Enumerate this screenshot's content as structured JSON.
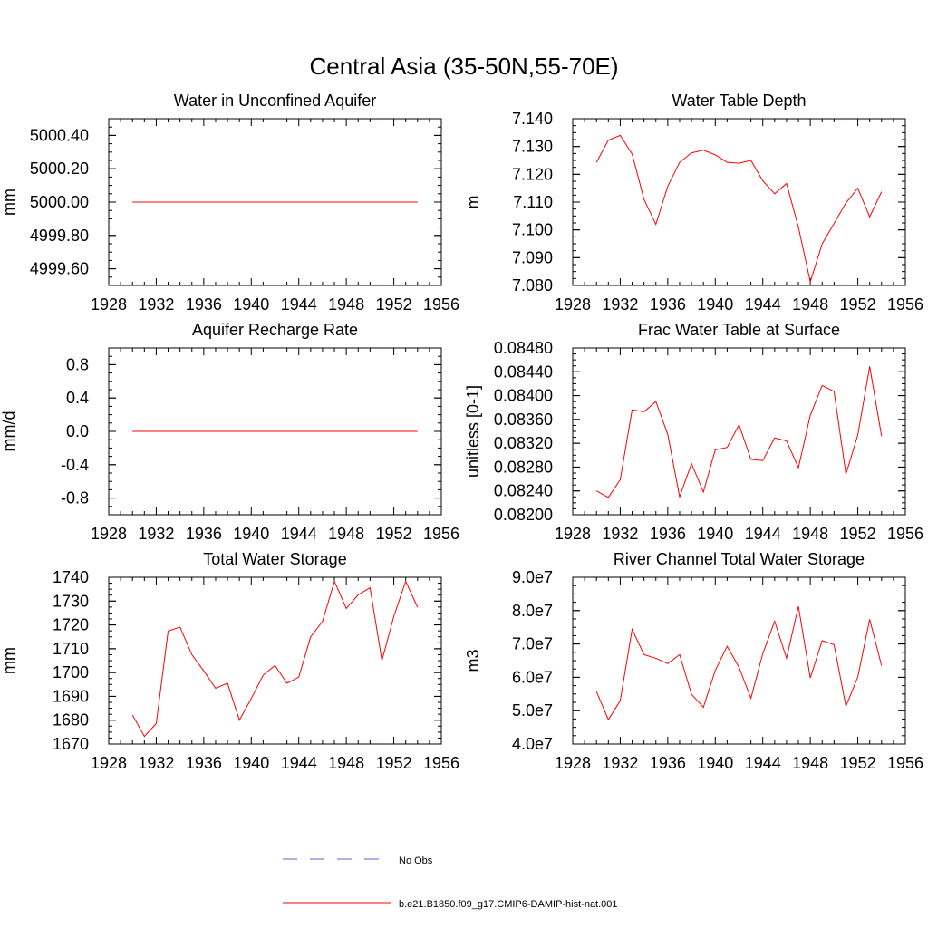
{
  "figure": {
    "title": "Central Asia (35-50N,55-70E)",
    "colors": {
      "model": "#ff0000",
      "obs": "#6060c0",
      "axis": "#000000"
    }
  },
  "legend": {
    "items": [
      {
        "label": "No Obs",
        "style": "dashed",
        "color": "#6060c0"
      },
      {
        "label": "b.e21.B1850.f09_g17.CMIP6-DAMIP-hist-nat.001",
        "style": "solid",
        "color": "#ff0000"
      }
    ]
  },
  "chart_data": [
    {
      "type": "line",
      "title": "Water in Unconfined Aquifer",
      "ylabel": "mm",
      "xlim": [
        1928,
        1956
      ],
      "xticks": [
        1928,
        1932,
        1936,
        1940,
        1944,
        1948,
        1952,
        1956
      ],
      "ylim": [
        4999.5,
        5000.5
      ],
      "yticks": [
        4999.6,
        4999.8,
        5000.0,
        5000.2,
        5000.4
      ],
      "ytick_labels": [
        "4999.60",
        "4999.80",
        "5000.00",
        "5000.20",
        "5000.40"
      ],
      "series": [
        {
          "x": [
            1930,
            1931,
            1932,
            1933,
            1934,
            1935,
            1936,
            1937,
            1938,
            1939,
            1940,
            1941,
            1942,
            1943,
            1944,
            1945,
            1946,
            1947,
            1948,
            1949,
            1950,
            1951,
            1952,
            1953,
            1954
          ],
          "y": [
            5000,
            5000,
            5000,
            5000,
            5000,
            5000,
            5000,
            5000,
            5000,
            5000,
            5000,
            5000,
            5000,
            5000,
            5000,
            5000,
            5000,
            5000,
            5000,
            5000,
            5000,
            5000,
            5000,
            5000,
            5000
          ]
        }
      ]
    },
    {
      "type": "line",
      "title": "Water Table Depth",
      "ylabel": "m",
      "xlim": [
        1928,
        1956
      ],
      "xticks": [
        1928,
        1932,
        1936,
        1940,
        1944,
        1948,
        1952,
        1956
      ],
      "ylim": [
        7.08,
        7.14
      ],
      "yticks": [
        7.08,
        7.09,
        7.1,
        7.11,
        7.12,
        7.13,
        7.14
      ],
      "ytick_labels": [
        "7.080",
        "7.090",
        "7.100",
        "7.110",
        "7.120",
        "7.130",
        "7.140"
      ],
      "series": [
        {
          "x": [
            1930,
            1931,
            1932,
            1933,
            1934,
            1935,
            1936,
            1937,
            1938,
            1939,
            1940,
            1941,
            1942,
            1943,
            1944,
            1945,
            1946,
            1947,
            1948,
            1949,
            1950,
            1951,
            1952,
            1953,
            1954
          ],
          "y": [
            7.1243,
            7.1323,
            7.134,
            7.1273,
            7.111,
            7.102,
            7.1157,
            7.1243,
            7.1277,
            7.1287,
            7.127,
            7.1243,
            7.124,
            7.125,
            7.1177,
            7.113,
            7.1167,
            7.101,
            7.0813,
            7.095,
            7.1023,
            7.1097,
            7.115,
            7.1047,
            7.1137
          ]
        }
      ]
    },
    {
      "type": "line",
      "title": "Aquifer Recharge Rate",
      "ylabel": "mm/d",
      "xlim": [
        1928,
        1956
      ],
      "xticks": [
        1928,
        1932,
        1936,
        1940,
        1944,
        1948,
        1952,
        1956
      ],
      "ylim": [
        -1.0,
        1.0
      ],
      "yticks": [
        -0.8,
        -0.4,
        0.0,
        0.4,
        0.8
      ],
      "ytick_labels": [
        "-0.8",
        "-0.4",
        "0.0",
        "0.4",
        "0.8"
      ],
      "series": [
        {
          "x": [
            1930,
            1931,
            1932,
            1933,
            1934,
            1935,
            1936,
            1937,
            1938,
            1939,
            1940,
            1941,
            1942,
            1943,
            1944,
            1945,
            1946,
            1947,
            1948,
            1949,
            1950,
            1951,
            1952,
            1953,
            1954
          ],
          "y": [
            0,
            0,
            0,
            0,
            0,
            0,
            0,
            0,
            0,
            0,
            0,
            0,
            0,
            0,
            0,
            0,
            0,
            0,
            0,
            0,
            0,
            0,
            0,
            0,
            0
          ]
        }
      ]
    },
    {
      "type": "line",
      "title": "Frac Water Table at Surface",
      "ylabel": "unitless [0-1]",
      "xlim": [
        1928,
        1956
      ],
      "xticks": [
        1928,
        1932,
        1936,
        1940,
        1944,
        1948,
        1952,
        1956
      ],
      "ylim": [
        0.082,
        0.0848
      ],
      "yticks": [
        0.082,
        0.0824,
        0.0828,
        0.0832,
        0.0836,
        0.084,
        0.0844,
        0.0848
      ],
      "ytick_labels": [
        "0.08200",
        "0.08240",
        "0.08280",
        "0.08320",
        "0.08360",
        "0.08400",
        "0.08440",
        "0.08480"
      ],
      "series": [
        {
          "x": [
            1930,
            1931,
            1932,
            1933,
            1934,
            1935,
            1936,
            1937,
            1938,
            1939,
            1940,
            1941,
            1942,
            1943,
            1944,
            1945,
            1946,
            1947,
            1948,
            1949,
            1950,
            1951,
            1952,
            1953,
            1954
          ],
          "y": [
            0.0824,
            0.08229,
            0.08259,
            0.08376,
            0.08373,
            0.0839,
            0.08335,
            0.0823,
            0.08286,
            0.08238,
            0.08309,
            0.08313,
            0.08351,
            0.08293,
            0.08291,
            0.08329,
            0.08324,
            0.08279,
            0.08367,
            0.08417,
            0.08407,
            0.08268,
            0.08334,
            0.08449,
            0.08332
          ]
        }
      ]
    },
    {
      "type": "line",
      "title": "Total Water Storage",
      "ylabel": "mm",
      "xlim": [
        1928,
        1956
      ],
      "xticks": [
        1928,
        1932,
        1936,
        1940,
        1944,
        1948,
        1952,
        1956
      ],
      "ylim": [
        1670,
        1740
      ],
      "yticks": [
        1670,
        1680,
        1690,
        1700,
        1710,
        1720,
        1730,
        1740
      ],
      "ytick_labels": [
        "1670",
        "1680",
        "1690",
        "1700",
        "1710",
        "1720",
        "1730",
        "1740"
      ],
      "series": [
        {
          "x": [
            1930,
            1931,
            1932,
            1933,
            1934,
            1935,
            1936,
            1937,
            1938,
            1939,
            1940,
            1941,
            1942,
            1943,
            1944,
            1945,
            1946,
            1947,
            1948,
            1949,
            1950,
            1951,
            1952,
            1953,
            1954
          ],
          "y": [
            1682.2,
            1673.2,
            1678.6,
            1717.4,
            1719.1,
            1707.5,
            1700.7,
            1693.4,
            1695.5,
            1680.0,
            1689.1,
            1698.9,
            1703.0,
            1695.5,
            1698.1,
            1715.0,
            1721.5,
            1738.3,
            1726.9,
            1732.6,
            1735.6,
            1705.0,
            1723.6,
            1738.3,
            1727.4
          ]
        }
      ]
    },
    {
      "type": "line",
      "title": "River Channel Total Water Storage",
      "ylabel": "m3",
      "xlim": [
        1928,
        1956
      ],
      "xticks": [
        1928,
        1932,
        1936,
        1940,
        1944,
        1948,
        1952,
        1956
      ],
      "ylim": [
        40000000,
        90000000
      ],
      "yticks": [
        40000000,
        50000000,
        60000000,
        70000000,
        80000000,
        90000000
      ],
      "ytick_labels": [
        "4.0e7",
        "5.0e7",
        "6.0e7",
        "7.0e7",
        "8.0e7",
        "9.0e7"
      ],
      "series": [
        {
          "x": [
            1930,
            1931,
            1932,
            1933,
            1934,
            1935,
            1936,
            1937,
            1938,
            1939,
            1940,
            1941,
            1942,
            1943,
            1944,
            1945,
            1946,
            1947,
            1948,
            1949,
            1950,
            1951,
            1952,
            1953,
            1954
          ],
          "y": [
            55700000,
            47300000,
            53000000,
            74400000,
            66800000,
            65700000,
            64100000,
            66800000,
            54900000,
            51000000,
            62100000,
            69300000,
            63000000,
            53700000,
            67100000,
            76800000,
            65700000,
            81300000,
            59800000,
            71000000,
            69800000,
            51300000,
            60100000,
            77400000,
            63500000
          ]
        }
      ]
    }
  ]
}
